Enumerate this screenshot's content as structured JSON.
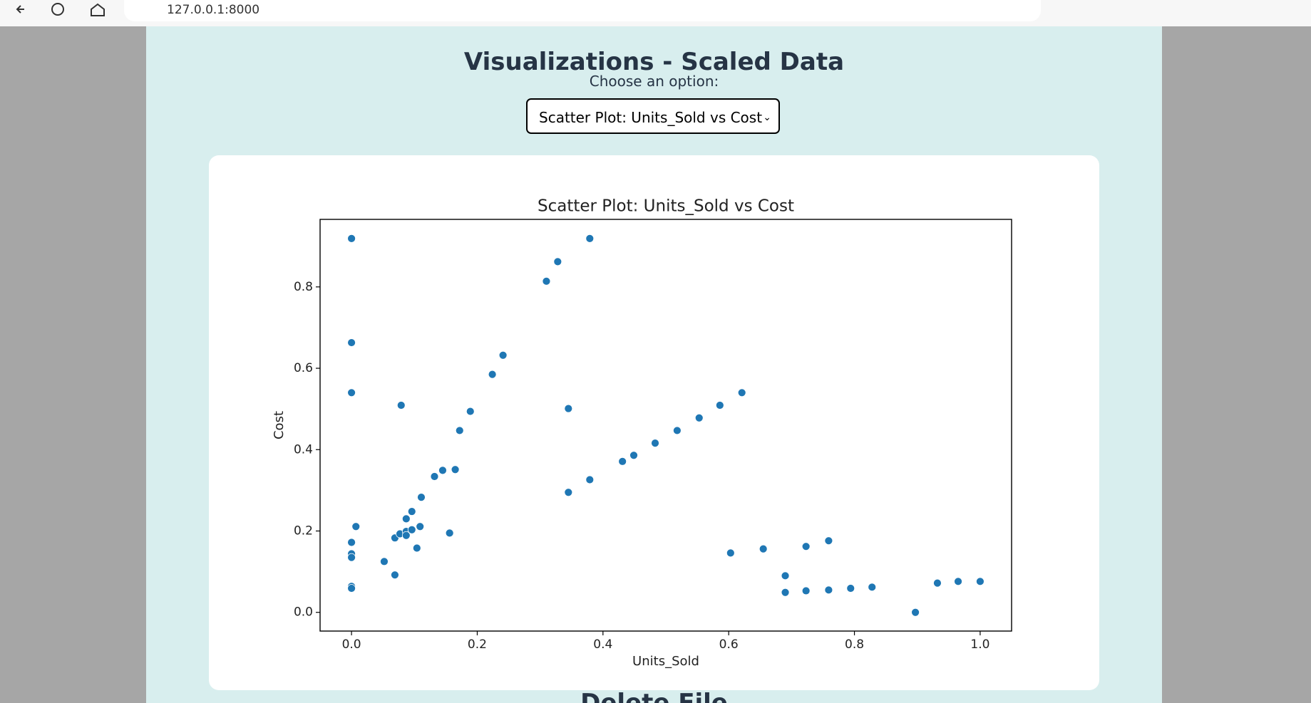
{
  "browser": {
    "url": "127.0.0.1:8000"
  },
  "page": {
    "title": "Visualizations - Scaled Data",
    "select_label": "Choose an option:",
    "selected_option": "Scatter Plot: Units_Sold vs Cost",
    "next_heading": "Delete File"
  },
  "chart_data": {
    "type": "scatter",
    "title": "Scatter Plot: Units_Sold vs Cost",
    "x_label": "Units_Sold",
    "y_label": "Cost",
    "color": "#1f77b4",
    "x": [
      0,
      0,
      0,
      0.007,
      0,
      0,
      0,
      0,
      0,
      0.052,
      0.069,
      0.069,
      0.079,
      0.077,
      0.087,
      0.087,
      0.087,
      0.096,
      0.096,
      0.104,
      0.109,
      0.111,
      0.132,
      0.145,
      0.156,
      0.165,
      0.172,
      0.189,
      0.224,
      0.241,
      0.31,
      0.328,
      0.379,
      0.345,
      0.345,
      0.379,
      0.431,
      0.449,
      0.483,
      0.518,
      0.553,
      0.586,
      0.621,
      0.603,
      0.655,
      0.69,
      0.69,
      0.723,
      0.723,
      0.759,
      0.759,
      0.794,
      0.828,
      0.897,
      0.932,
      0.965,
      1.0
    ],
    "y": [
      0.919,
      0.663,
      0.54,
      0.211,
      0.172,
      0.144,
      0.135,
      0.064,
      0.059,
      0.125,
      0.092,
      0.183,
      0.509,
      0.193,
      0.23,
      0.199,
      0.189,
      0.248,
      0.203,
      0.158,
      0.211,
      0.283,
      0.334,
      0.349,
      0.195,
      0.351,
      0.447,
      0.494,
      0.585,
      0.632,
      0.814,
      0.862,
      0.919,
      0.501,
      0.295,
      0.326,
      0.371,
      0.386,
      0.416,
      0.447,
      0.478,
      0.509,
      0.54,
      0.146,
      0.156,
      0.09,
      0.049,
      0.162,
      0.053,
      0.176,
      0.055,
      0.059,
      0.062,
      0,
      0.072,
      0.076,
      0.076
    ],
    "xlim": [
      -0.05,
      1.05
    ],
    "ylim": [
      -0.046,
      0.966
    ],
    "xticks": [
      {
        "value": 0,
        "label": "0.0"
      },
      0.2,
      0.4,
      0.6,
      0.8,
      {
        "value": 1,
        "label": "1.0"
      }
    ],
    "yticks": [
      {
        "value": 0,
        "label": "0.0"
      },
      0.2,
      0.4,
      0.6,
      0.8
    ]
  }
}
